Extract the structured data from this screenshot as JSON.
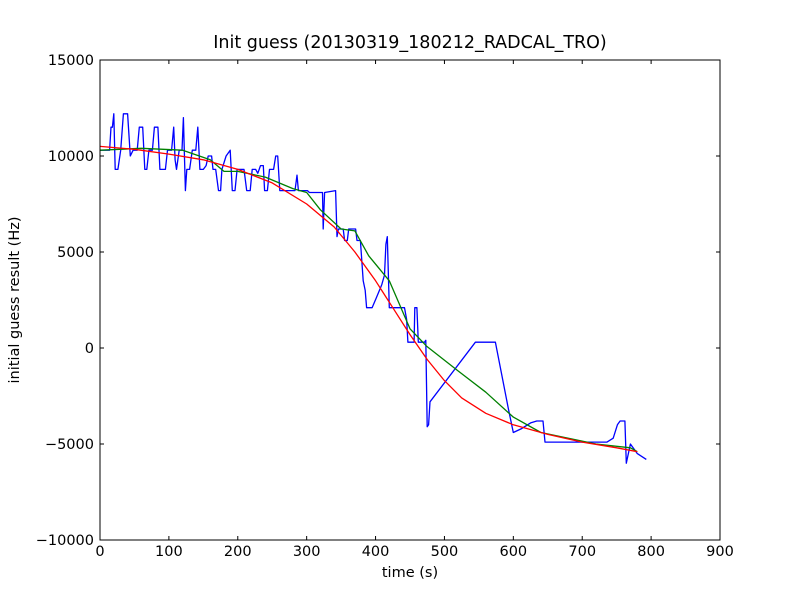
{
  "chart_data": {
    "type": "line",
    "title": "Init guess (20130319_180212_RADCAL_TRO)",
    "xlabel": "time (s)",
    "ylabel": "initial guess result (Hz)",
    "xlim": [
      0,
      900
    ],
    "ylim": [
      -10000,
      15000
    ],
    "x_ticks": [
      0,
      100,
      200,
      300,
      400,
      500,
      600,
      700,
      800,
      900
    ],
    "x_tick_labels": [
      "0",
      "100",
      "200",
      "300",
      "400",
      "500",
      "600",
      "700",
      "800",
      "900"
    ],
    "y_ticks": [
      -10000,
      -5000,
      0,
      5000,
      10000,
      15000
    ],
    "y_tick_labels": [
      "−10000",
      "−5000",
      "0",
      "5000",
      "10000",
      "15000"
    ],
    "grid": false,
    "legend": "none",
    "series": [
      {
        "color": "#0000ff",
        "points": [
          [
            0,
            10300
          ],
          [
            14,
            10300
          ],
          [
            16,
            11500
          ],
          [
            18,
            11500
          ],
          [
            20,
            12200
          ],
          [
            22,
            9300
          ],
          [
            26,
            9300
          ],
          [
            30,
            10300
          ],
          [
            34,
            12200
          ],
          [
            40,
            12200
          ],
          [
            44,
            10000
          ],
          [
            48,
            10300
          ],
          [
            54,
            10300
          ],
          [
            57,
            11500
          ],
          [
            62,
            11500
          ],
          [
            65,
            9300
          ],
          [
            68,
            9300
          ],
          [
            71,
            10300
          ],
          [
            76,
            10300
          ],
          [
            79,
            11500
          ],
          [
            84,
            11500
          ],
          [
            87,
            9300
          ],
          [
            95,
            9300
          ],
          [
            98,
            10300
          ],
          [
            104,
            10300
          ],
          [
            107,
            11500
          ],
          [
            109,
            9800
          ],
          [
            111,
            9300
          ],
          [
            115,
            10300
          ],
          [
            119,
            10300
          ],
          [
            121,
            12000
          ],
          [
            124,
            8200
          ],
          [
            126,
            9300
          ],
          [
            130,
            9300
          ],
          [
            134,
            10300
          ],
          [
            139,
            10300
          ],
          [
            142,
            11500
          ],
          [
            145,
            9300
          ],
          [
            150,
            9300
          ],
          [
            154,
            9500
          ],
          [
            157,
            10000
          ],
          [
            162,
            10000
          ],
          [
            164,
            9300
          ],
          [
            168,
            9300
          ],
          [
            172,
            8200
          ],
          [
            175,
            8200
          ],
          [
            177,
            9300
          ],
          [
            183,
            10000
          ],
          [
            189,
            10300
          ],
          [
            192,
            8200
          ],
          [
            196,
            8200
          ],
          [
            199,
            9300
          ],
          [
            209,
            9300
          ],
          [
            213,
            8200
          ],
          [
            218,
            8200
          ],
          [
            221,
            9300
          ],
          [
            226,
            9300
          ],
          [
            229,
            9100
          ],
          [
            233,
            9500
          ],
          [
            237,
            9500
          ],
          [
            239,
            8200
          ],
          [
            243,
            8200
          ],
          [
            246,
            9300
          ],
          [
            252,
            9300
          ],
          [
            255,
            10000
          ],
          [
            258,
            10000
          ],
          [
            261,
            8200
          ],
          [
            283,
            8200
          ],
          [
            286,
            9000
          ],
          [
            288,
            8200
          ],
          [
            298,
            8200
          ],
          [
            301,
            8200
          ],
          [
            304,
            8100
          ],
          [
            323,
            8100
          ],
          [
            324,
            6200
          ],
          [
            326,
            8100
          ],
          [
            342,
            8200
          ],
          [
            344,
            5800
          ],
          [
            346,
            6200
          ],
          [
            353,
            6200
          ],
          [
            355,
            5600
          ],
          [
            359,
            5600
          ],
          [
            361,
            6200
          ],
          [
            371,
            6200
          ],
          [
            373,
            5600
          ],
          [
            378,
            5600
          ],
          [
            382,
            3500
          ],
          [
            385,
            3000
          ],
          [
            387,
            2100
          ],
          [
            395,
            2100
          ],
          [
            401,
            2600
          ],
          [
            409,
            3300
          ],
          [
            413,
            3800
          ],
          [
            415,
            5400
          ],
          [
            417,
            5800
          ],
          [
            420,
            2100
          ],
          [
            442,
            2100
          ],
          [
            445,
            1500
          ],
          [
            447,
            300
          ],
          [
            456,
            300
          ],
          [
            457,
            2100
          ],
          [
            460,
            2100
          ],
          [
            462,
            300
          ],
          [
            466,
            300
          ],
          [
            471,
            300
          ],
          [
            473,
            400
          ],
          [
            475,
            -4100
          ],
          [
            477,
            -4000
          ],
          [
            479,
            -2800
          ],
          [
            545,
            300
          ],
          [
            574,
            300
          ],
          [
            593,
            -3200
          ],
          [
            600,
            -4400
          ],
          [
            612,
            -4200
          ],
          [
            625,
            -3900
          ],
          [
            634,
            -3800
          ],
          [
            643,
            -3800
          ],
          [
            646,
            -4900
          ],
          [
            736,
            -4900
          ],
          [
            745,
            -4700
          ],
          [
            751,
            -4000
          ],
          [
            755,
            -3800
          ],
          [
            762,
            -3800
          ],
          [
            764,
            -6000
          ],
          [
            770,
            -5000
          ],
          [
            780,
            -5500
          ],
          [
            793,
            -5800
          ]
        ]
      },
      {
        "color": "#008000",
        "points": [
          [
            0,
            10300
          ],
          [
            60,
            10400
          ],
          [
            120,
            10300
          ],
          [
            160,
            9800
          ],
          [
            180,
            9200
          ],
          [
            200,
            9200
          ],
          [
            240,
            8900
          ],
          [
            280,
            8300
          ],
          [
            300,
            8100
          ],
          [
            320,
            7200
          ],
          [
            350,
            6200
          ],
          [
            370,
            6100
          ],
          [
            390,
            4800
          ],
          [
            420,
            3500
          ],
          [
            450,
            1000
          ],
          [
            474,
            100
          ],
          [
            520,
            -1200
          ],
          [
            560,
            -2300
          ],
          [
            600,
            -3600
          ],
          [
            640,
            -4400
          ],
          [
            680,
            -4700
          ],
          [
            720,
            -5000
          ],
          [
            770,
            -5200
          ],
          [
            780,
            -5400
          ]
        ]
      },
      {
        "color": "#ff0000",
        "points": [
          [
            0,
            10500
          ],
          [
            50,
            10350
          ],
          [
            100,
            10100
          ],
          [
            150,
            9800
          ],
          [
            200,
            9300
          ],
          [
            250,
            8600
          ],
          [
            300,
            7500
          ],
          [
            340,
            6300
          ],
          [
            370,
            5000
          ],
          [
            400,
            3500
          ],
          [
            425,
            2100
          ],
          [
            450,
            700
          ],
          [
            475,
            -600
          ],
          [
            500,
            -1700
          ],
          [
            525,
            -2600
          ],
          [
            560,
            -3400
          ],
          [
            600,
            -4000
          ],
          [
            650,
            -4500
          ],
          [
            700,
            -4900
          ],
          [
            750,
            -5200
          ],
          [
            780,
            -5400
          ]
        ]
      }
    ]
  }
}
